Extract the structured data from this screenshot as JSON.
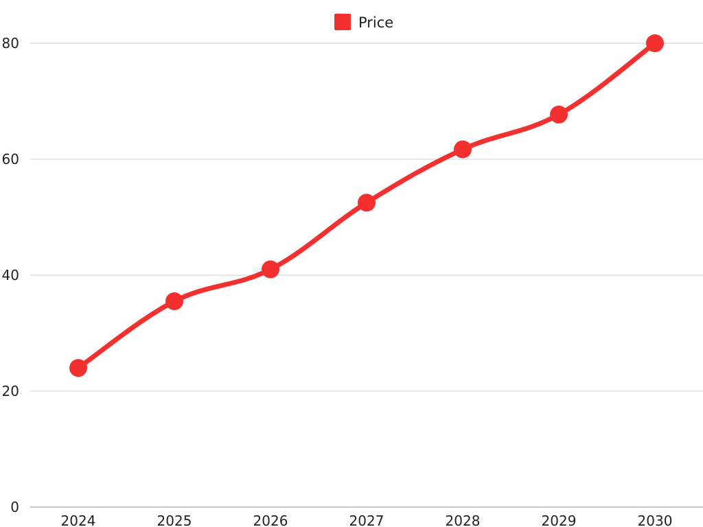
{
  "chart_data": {
    "type": "line",
    "title": "",
    "xlabel": "",
    "ylabel": "",
    "categories": [
      "2024",
      "2025",
      "2026",
      "2027",
      "2028",
      "2029",
      "2030"
    ],
    "series": [
      {
        "name": "Price",
        "values": [
          24,
          35.5,
          41,
          52.5,
          61.7,
          67.7,
          80
        ],
        "color": "#f23030"
      }
    ],
    "ylim": [
      0,
      80
    ],
    "yticks": [
      "0",
      "20",
      "40",
      "60",
      "80"
    ],
    "grid": true,
    "legend_position": "top-center",
    "line_style": "smooth",
    "markers": "circle"
  }
}
